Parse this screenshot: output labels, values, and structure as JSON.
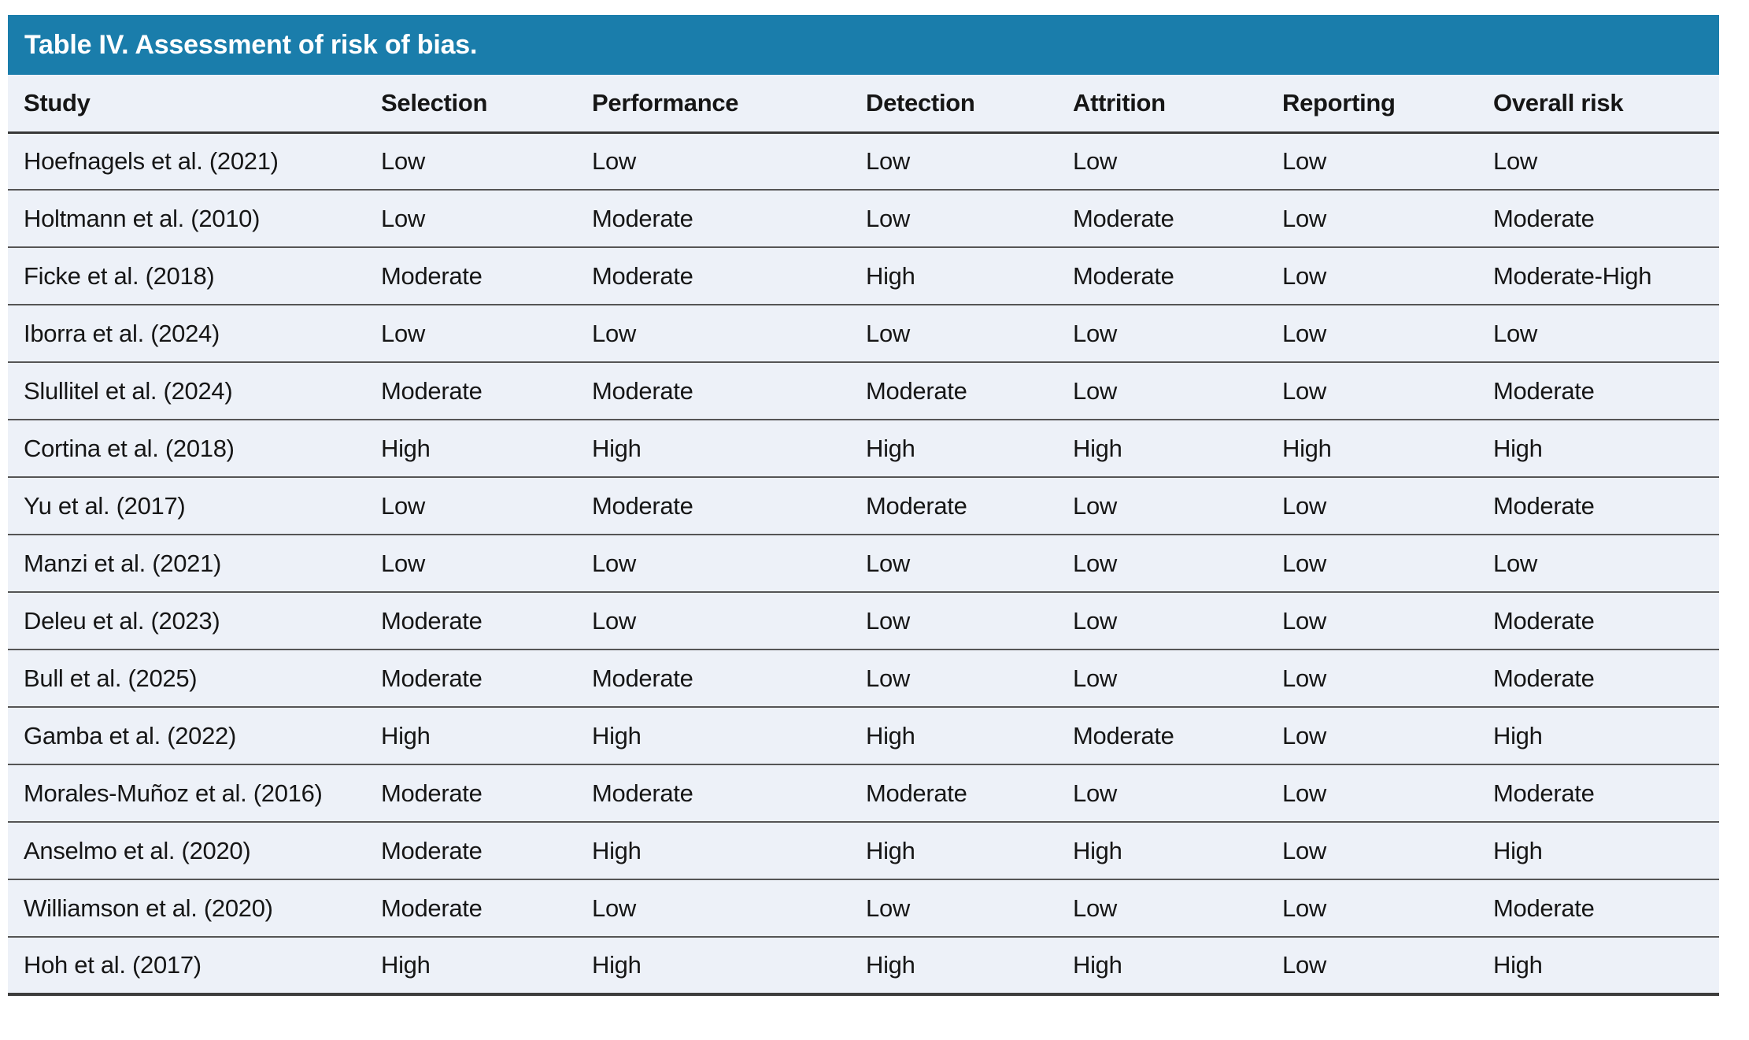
{
  "title": "Table IV. Assessment of risk of bias.",
  "columns": [
    "Study",
    "Selection",
    "Performance",
    "Detection",
    "Attrition",
    "Reporting",
    "Overall risk"
  ],
  "rows": [
    [
      "Hoefnagels et al. (2021)",
      "Low",
      "Low",
      "Low",
      "Low",
      "Low",
      "Low"
    ],
    [
      "Holtmann et al. (2010)",
      "Low",
      "Moderate",
      "Low",
      "Moderate",
      "Low",
      "Moderate"
    ],
    [
      "Ficke et al. (2018)",
      "Moderate",
      "Moderate",
      "High",
      "Moderate",
      "Low",
      "Moderate-High"
    ],
    [
      "Iborra et al. (2024)",
      "Low",
      "Low",
      "Low",
      "Low",
      "Low",
      "Low"
    ],
    [
      "Slullitel et al. (2024)",
      "Moderate",
      "Moderate",
      "Moderate",
      "Low",
      "Low",
      "Moderate"
    ],
    [
      "Cortina et al. (2018)",
      "High",
      "High",
      "High",
      "High",
      "High",
      "High"
    ],
    [
      "Yu et al. (2017)",
      "Low",
      "Moderate",
      "Moderate",
      "Low",
      "Low",
      "Moderate"
    ],
    [
      "Manzi et al. (2021)",
      "Low",
      "Low",
      "Low",
      "Low",
      "Low",
      "Low"
    ],
    [
      "Deleu et al. (2023)",
      "Moderate",
      "Low",
      "Low",
      "Low",
      "Low",
      "Moderate"
    ],
    [
      "Bull et al. (2025)",
      "Moderate",
      "Moderate",
      "Low",
      "Low",
      "Low",
      "Moderate"
    ],
    [
      "Gamba et al. (2022)",
      "High",
      "High",
      "High",
      "Moderate",
      "Low",
      "High"
    ],
    [
      "Morales-Muñoz et al. (2016)",
      "Moderate",
      "Moderate",
      "Moderate",
      "Low",
      "Low",
      "Moderate"
    ],
    [
      "Anselmo et al. (2020)",
      "Moderate",
      "High",
      "High",
      "High",
      "Low",
      "High"
    ],
    [
      "Williamson et al. (2020)",
      "Moderate",
      "Low",
      "Low",
      "Low",
      "Low",
      "Moderate"
    ],
    [
      "Hoh et al. (2017)",
      "High",
      "High",
      "High",
      "High",
      "Low",
      "High"
    ]
  ],
  "colors": {
    "title_bar": "#1A7DAB",
    "title_text": "#FFFFFF",
    "row_background": "#EDF1F8",
    "row_separator": "#555555",
    "header_underline": "#383838",
    "body_text": "#161616"
  }
}
